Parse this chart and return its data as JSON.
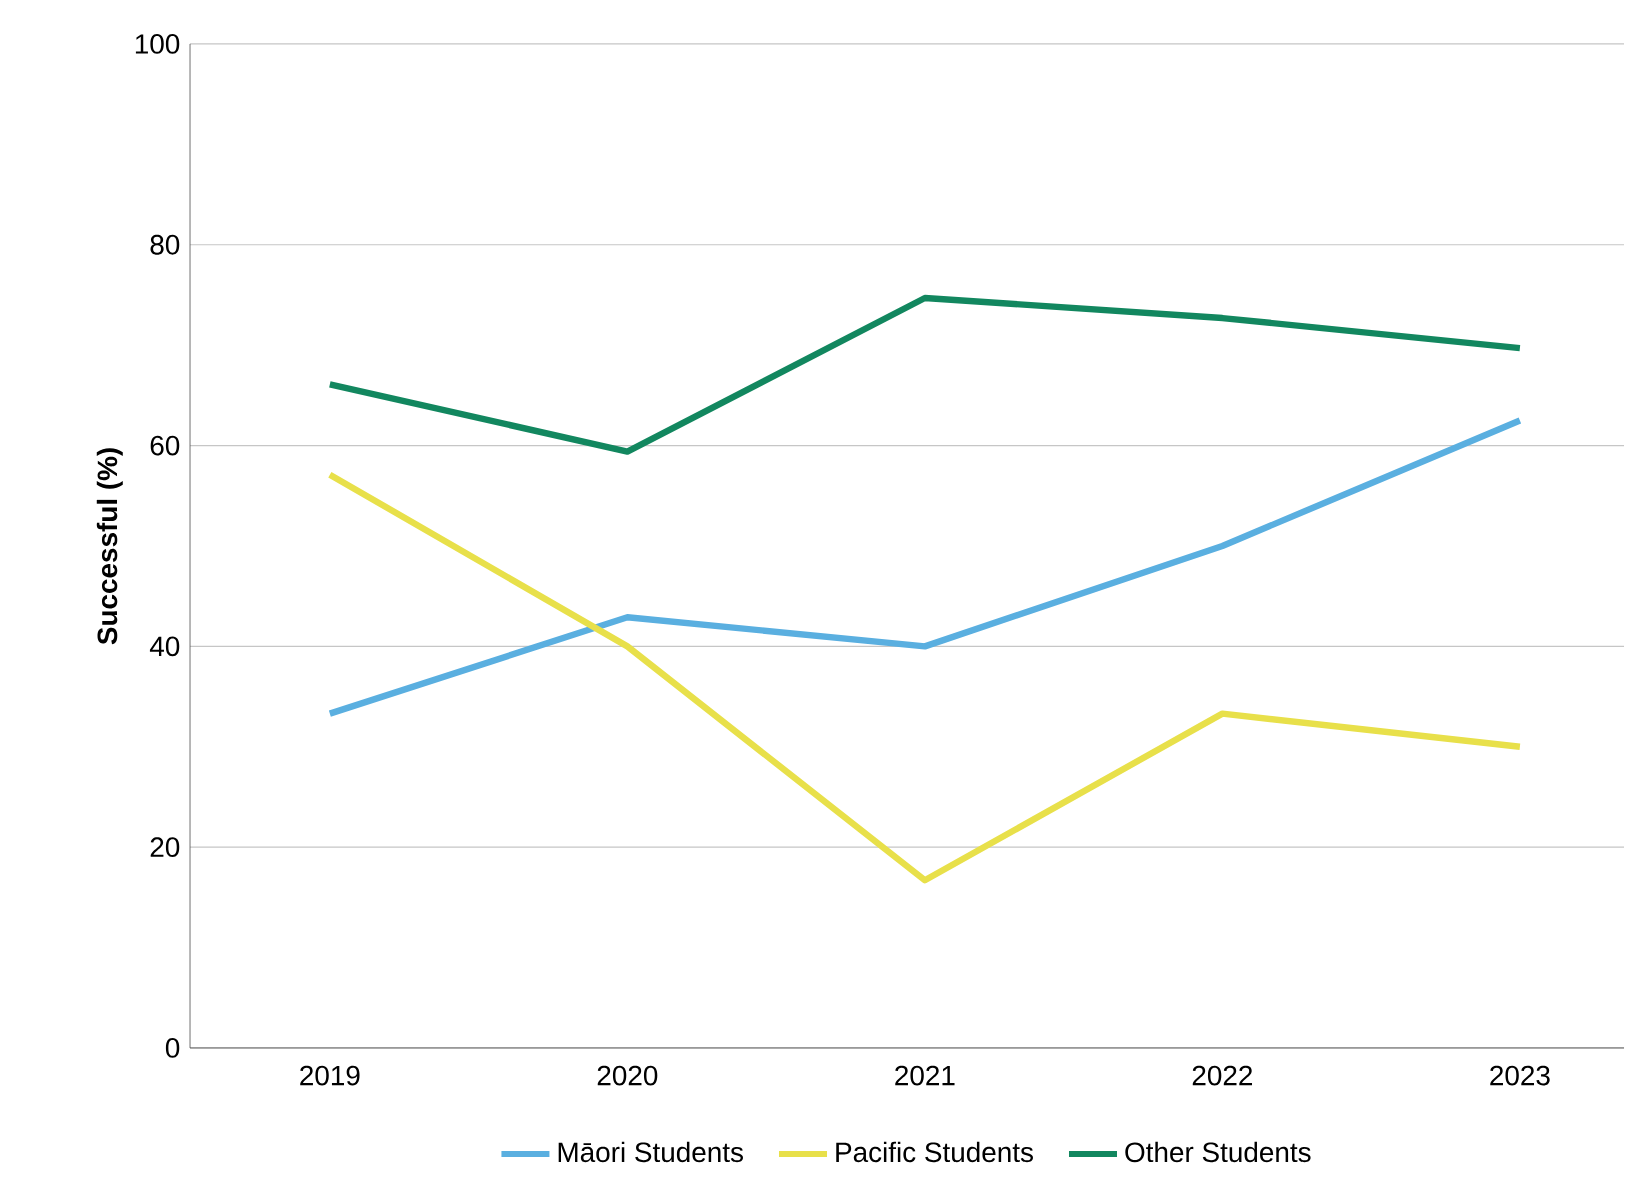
{
  "chart_data": {
    "type": "line",
    "ylabel": "Successful (%)",
    "categories": [
      "2019",
      "2020",
      "2021",
      "2022",
      "2023"
    ],
    "series": [
      {
        "name": "Māori Students",
        "color": "#5aafe0",
        "values": [
          33.3,
          42.9,
          40,
          50,
          62.5
        ]
      },
      {
        "name": "Pacific Students",
        "color": "#e8e04a",
        "values": [
          57.1,
          40,
          16.7,
          33.3,
          30
        ]
      },
      {
        "name": "Other Students",
        "color": "#12875f",
        "values": [
          66.1,
          59.4,
          74.7,
          72.7,
          69.7
        ]
      }
    ],
    "ylim": [
      0,
      100
    ],
    "yticks": [
      0,
      20,
      40,
      60,
      80,
      100
    ],
    "grid": "y",
    "legend": "bottom",
    "marker": "none",
    "line_style": "solid"
  }
}
